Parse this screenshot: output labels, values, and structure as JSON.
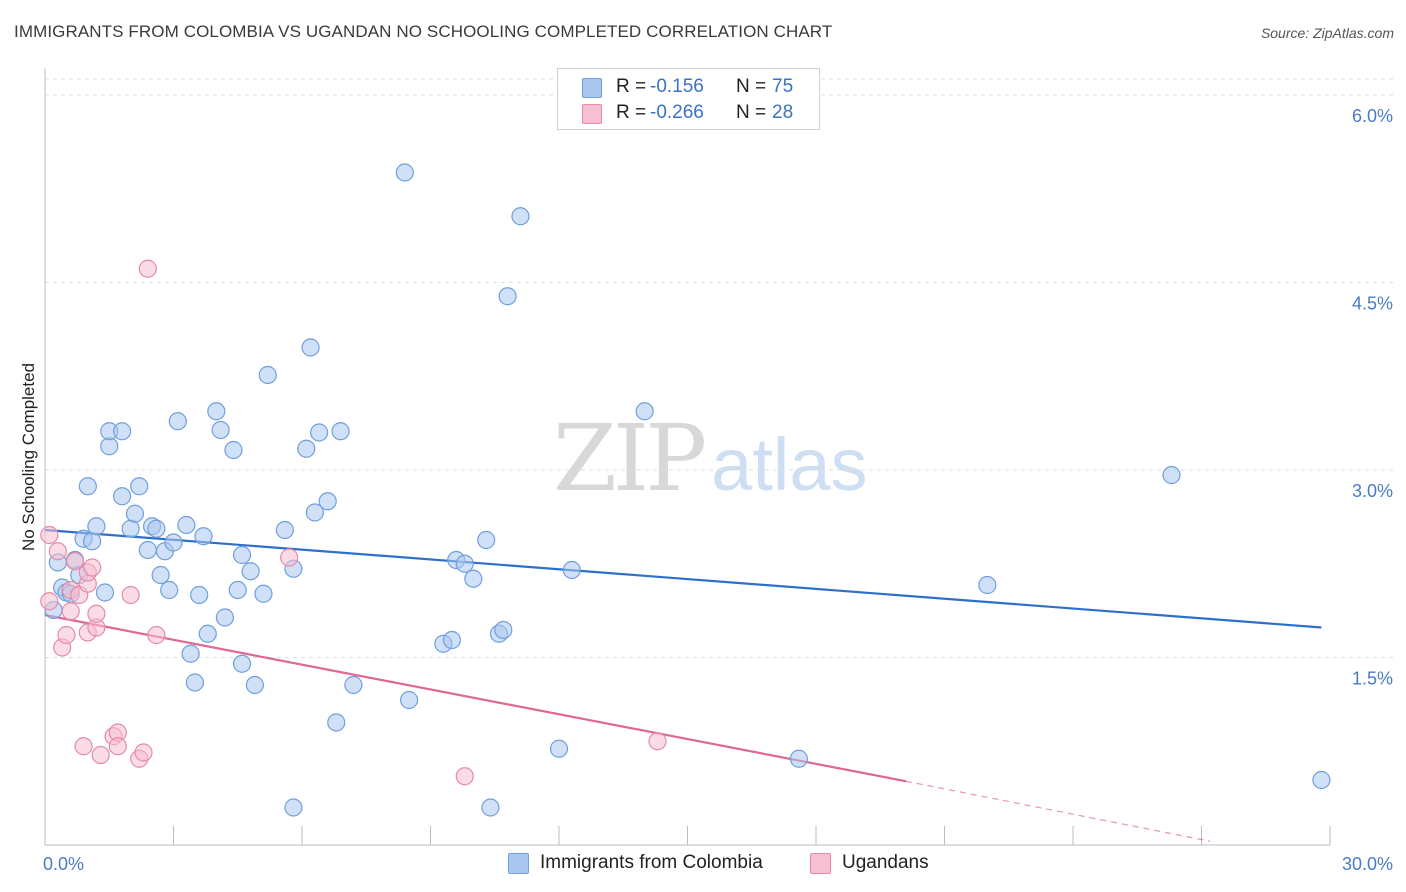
{
  "header": {
    "title": "IMMIGRANTS FROM COLOMBIA VS UGANDAN NO SCHOOLING COMPLETED CORRELATION CHART",
    "source": "Source: ZipAtlas.com"
  },
  "watermark": {
    "zip": "ZIP",
    "atlas": "atlas"
  },
  "legend": {
    "rows": [
      {
        "r_label": "R =",
        "r_value": "-0.156",
        "n_label": "N =",
        "n_value": "75",
        "color": "#a9c6ee",
        "border": "#6f9fdc"
      },
      {
        "r_label": "R =",
        "r_value": "-0.266",
        "n_label": "N =",
        "n_value": "28",
        "color": "#f7c0d0",
        "border": "#e48aa8"
      }
    ]
  },
  "bottom_legend": [
    {
      "label": "Immigrants from Colombia",
      "color": "#a9c6ee",
      "border": "#6f9fdc"
    },
    {
      "label": "Ugandans",
      "color": "#f7c0d0",
      "border": "#e48aa8"
    }
  ],
  "chart_data": {
    "type": "scatter",
    "title": "IMMIGRANTS FROM COLOMBIA VS UGANDAN NO SCHOOLING COMPLETED CORRELATION CHART",
    "xlabel": "",
    "ylabel": "No Schooling Completed",
    "xlim": [
      0,
      30
    ],
    "ylim": [
      0,
      6.2
    ],
    "x_ticks": [
      "0.0%",
      "30.0%"
    ],
    "y_ticks": [
      {
        "value": 1.5,
        "label": "1.5%"
      },
      {
        "value": 3.0,
        "label": "3.0%"
      },
      {
        "value": 4.5,
        "label": "4.5%"
      },
      {
        "value": 6.0,
        "label": "6.0%"
      }
    ],
    "grid": true,
    "series": [
      {
        "name": "Immigrants from Colombia",
        "color": "#a9c6ee",
        "stroke": "#6f9fdc",
        "trend": {
          "x": [
            0,
            29.8
          ],
          "y": [
            2.52,
            1.74
          ],
          "color": "#2e6fcc"
        },
        "points": [
          [
            0.2,
            1.88
          ],
          [
            0.3,
            2.26
          ],
          [
            0.4,
            2.06
          ],
          [
            0.5,
            2.02
          ],
          [
            0.6,
            2.01
          ],
          [
            0.7,
            2.28
          ],
          [
            0.8,
            2.16
          ],
          [
            0.9,
            2.45
          ],
          [
            1.1,
            2.43
          ],
          [
            1.2,
            2.55
          ],
          [
            1.4,
            2.02
          ],
          [
            1.5,
            3.19
          ],
          [
            1.5,
            3.31
          ],
          [
            1.8,
            3.31
          ],
          [
            1.8,
            2.79
          ],
          [
            2.0,
            2.53
          ],
          [
            2.1,
            2.65
          ],
          [
            2.2,
            2.87
          ],
          [
            2.4,
            2.36
          ],
          [
            2.5,
            2.55
          ],
          [
            2.6,
            2.53
          ],
          [
            2.7,
            2.16
          ],
          [
            2.8,
            2.35
          ],
          [
            2.9,
            2.04
          ],
          [
            3.0,
            2.42
          ],
          [
            3.1,
            3.39
          ],
          [
            3.3,
            2.56
          ],
          [
            3.4,
            1.53
          ],
          [
            3.5,
            1.3
          ],
          [
            3.6,
            2.0
          ],
          [
            3.7,
            2.47
          ],
          [
            3.8,
            1.69
          ],
          [
            4.0,
            3.47
          ],
          [
            4.1,
            3.32
          ],
          [
            4.2,
            1.82
          ],
          [
            4.4,
            3.16
          ],
          [
            4.5,
            2.04
          ],
          [
            4.6,
            1.45
          ],
          [
            4.6,
            2.32
          ],
          [
            4.8,
            2.19
          ],
          [
            4.9,
            1.28
          ],
          [
            5.1,
            2.01
          ],
          [
            5.2,
            3.76
          ],
          [
            5.6,
            2.52
          ],
          [
            5.8,
            2.21
          ],
          [
            5.8,
            0.3
          ],
          [
            6.1,
            3.17
          ],
          [
            6.2,
            3.98
          ],
          [
            6.3,
            2.66
          ],
          [
            6.4,
            3.3
          ],
          [
            6.6,
            2.75
          ],
          [
            6.9,
            3.31
          ],
          [
            7.2,
            1.28
          ],
          [
            6.8,
            0.98
          ],
          [
            8.4,
            5.38
          ],
          [
            8.5,
            1.16
          ],
          [
            9.3,
            1.61
          ],
          [
            9.5,
            1.64
          ],
          [
            9.6,
            2.28
          ],
          [
            9.8,
            2.25
          ],
          [
            10.0,
            2.13
          ],
          [
            10.3,
            2.44
          ],
          [
            10.4,
            0.3
          ],
          [
            10.6,
            1.69
          ],
          [
            10.7,
            1.72
          ],
          [
            10.8,
            4.39
          ],
          [
            11.1,
            5.03
          ],
          [
            12.0,
            0.77
          ],
          [
            12.3,
            2.2
          ],
          [
            14.0,
            3.47
          ],
          [
            17.6,
            0.69
          ],
          [
            22.0,
            2.08
          ],
          [
            26.3,
            2.96
          ],
          [
            29.8,
            0.52
          ],
          [
            1.0,
            2.87
          ]
        ]
      },
      {
        "name": "Ugandans",
        "color": "#f7c0d0",
        "stroke": "#e48aa8",
        "trend": {
          "x": [
            0,
            20.1
          ],
          "y": [
            1.84,
            0.51
          ],
          "color": "#e06892"
        },
        "trend_ext": {
          "x": [
            20.1,
            27.2
          ],
          "y": [
            0.51,
            0.03
          ]
        },
        "points": [
          [
            0.1,
            1.95
          ],
          [
            0.1,
            2.48
          ],
          [
            0.3,
            2.35
          ],
          [
            0.4,
            1.58
          ],
          [
            0.5,
            1.68
          ],
          [
            0.6,
            2.04
          ],
          [
            0.6,
            1.87
          ],
          [
            0.7,
            2.27
          ],
          [
            0.8,
            2.0
          ],
          [
            0.9,
            0.79
          ],
          [
            1.0,
            2.09
          ],
          [
            1.0,
            1.7
          ],
          [
            1.0,
            2.18
          ],
          [
            1.1,
            2.22
          ],
          [
            1.2,
            1.74
          ],
          [
            1.2,
            1.85
          ],
          [
            1.3,
            0.72
          ],
          [
            1.6,
            0.87
          ],
          [
            1.7,
            0.9
          ],
          [
            1.7,
            0.79
          ],
          [
            2.2,
            0.69
          ],
          [
            2.3,
            0.74
          ],
          [
            2.4,
            4.61
          ],
          [
            2.6,
            1.68
          ],
          [
            5.7,
            2.3
          ],
          [
            9.8,
            0.55
          ],
          [
            14.3,
            0.83
          ],
          [
            2.0,
            2.0
          ]
        ]
      }
    ]
  }
}
